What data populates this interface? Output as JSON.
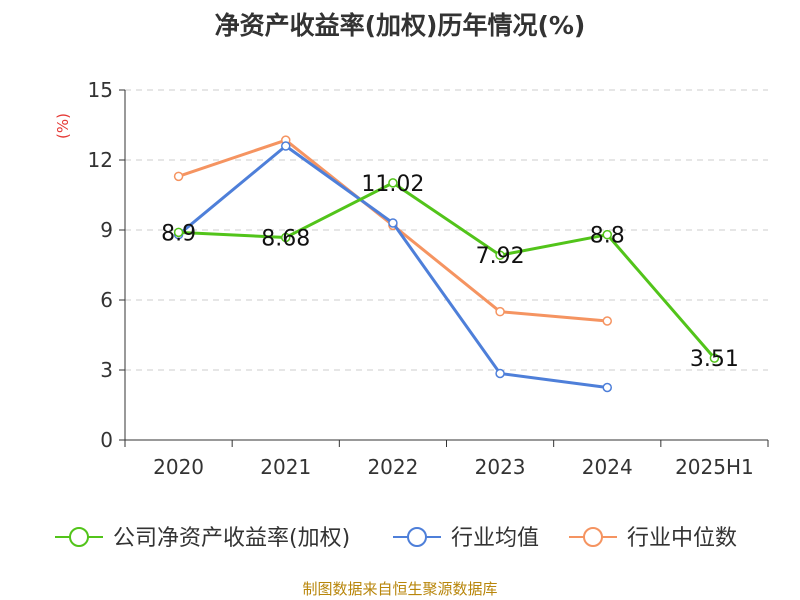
{
  "title": "净资产收益率(加权)历年情况(%)",
  "source": "制图数据来自恒生聚源数据库",
  "colors": {
    "company": "#52c41a",
    "industry_avg": "#4e7fd9",
    "industry_median": "#f59461",
    "unit": "#e53935"
  },
  "chart_data": {
    "type": "line",
    "title": "净资产收益率(加权)历年情况(%)",
    "ylabel": "(%)",
    "xlabel": "",
    "ylim": [
      0,
      15
    ],
    "yticks": [
      0,
      3,
      6,
      9,
      12,
      15
    ],
    "grid": true,
    "legend_position": "bottom",
    "categories": [
      "2020",
      "2021",
      "2022",
      "2023",
      "2024",
      "2025H1"
    ],
    "series": [
      {
        "name": "公司净资产收益率(加权)",
        "values": [
          8.9,
          8.68,
          11.02,
          7.92,
          8.8,
          3.51
        ],
        "labels": [
          "8.9",
          "8.68",
          "11.02",
          "7.92",
          "8.8",
          "3.51"
        ]
      },
      {
        "name": "行业均值",
        "values": [
          8.8,
          12.6,
          9.3,
          2.85,
          2.25,
          null
        ]
      },
      {
        "name": "行业中位数",
        "values": [
          11.3,
          12.85,
          9.2,
          5.5,
          5.1,
          null
        ]
      }
    ]
  }
}
